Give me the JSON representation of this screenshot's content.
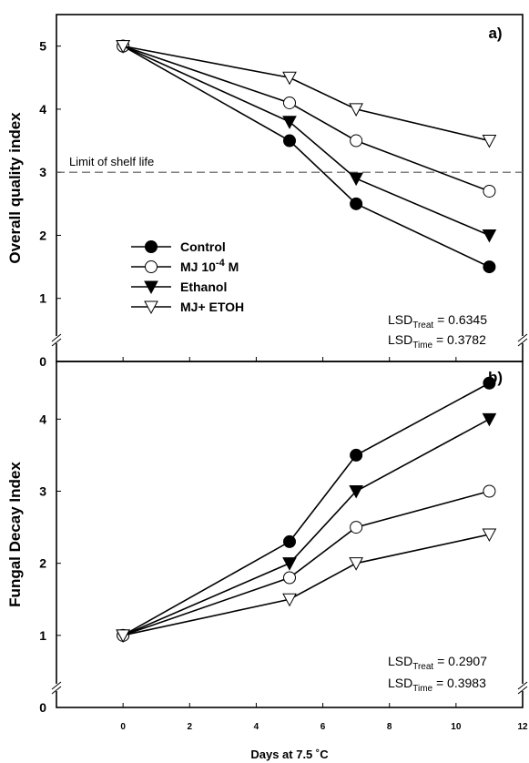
{
  "chart_data": [
    {
      "type": "line",
      "panel_label": "a)",
      "ylabel": "Overall quality index",
      "ylim": [
        0,
        5.5
      ],
      "yticks": [
        "0",
        "1",
        "2",
        "3",
        "4",
        "5"
      ],
      "x": [
        0,
        5,
        7,
        11
      ],
      "series": [
        {
          "name": "Control",
          "marker": "filled-circle",
          "values": [
            5.0,
            3.5,
            2.5,
            1.5
          ]
        },
        {
          "name": "MJ 10",
          "name_sup": "-4",
          "name_suffix": " M",
          "marker": "open-circle",
          "values": [
            5.0,
            4.1,
            3.5,
            2.7
          ]
        },
        {
          "name": "Ethanol",
          "marker": "filled-triangle-down",
          "values": [
            5.0,
            3.8,
            2.9,
            2.0
          ]
        },
        {
          "name": "MJ+ ETOH",
          "marker": "open-triangle-down",
          "values": [
            5.0,
            4.5,
            4.0,
            3.5
          ]
        }
      ],
      "reference_line": {
        "y": 3,
        "label": "Limit of shelf life",
        "style": "dashed"
      },
      "lsd": [
        {
          "prefix": "LSD",
          "sub": "Treat",
          "value": " = 0.6345"
        },
        {
          "prefix": "LSD",
          "sub": "Time",
          "value": " = 0.3782"
        }
      ],
      "axis_break": true,
      "legend_placement": "left-center"
    },
    {
      "type": "line",
      "panel_label": "b)",
      "ylabel": "Fungal Decay Index",
      "ylim": [
        0,
        4.8
      ],
      "yticks": [
        "0",
        "1",
        "2",
        "3",
        "4"
      ],
      "x": [
        0,
        5,
        7,
        11
      ],
      "series": [
        {
          "name": "Control",
          "marker": "filled-circle",
          "values": [
            1.0,
            2.3,
            3.5,
            4.5
          ]
        },
        {
          "name": "MJ 10-4 M",
          "marker": "open-circle",
          "values": [
            1.0,
            1.8,
            2.5,
            3.0
          ]
        },
        {
          "name": "Ethanol",
          "marker": "filled-triangle-down",
          "values": [
            1.0,
            2.0,
            3.0,
            4.0
          ]
        },
        {
          "name": "MJ+ ETOH",
          "marker": "open-triangle-down",
          "values": [
            1.0,
            1.5,
            2.0,
            2.4
          ]
        }
      ],
      "lsd": [
        {
          "prefix": "LSD",
          "sub": "Treat",
          "value": " = 0.2907"
        },
        {
          "prefix": "LSD",
          "sub": "Time",
          "value": " = 0.3983"
        }
      ],
      "axis_break": true
    }
  ],
  "x_axis": {
    "label": "Days at 7.5 ˚C",
    "xlim": [
      -2,
      12
    ],
    "ticks": [
      "0",
      "2",
      "4",
      "6",
      "8",
      "10",
      "12"
    ]
  }
}
